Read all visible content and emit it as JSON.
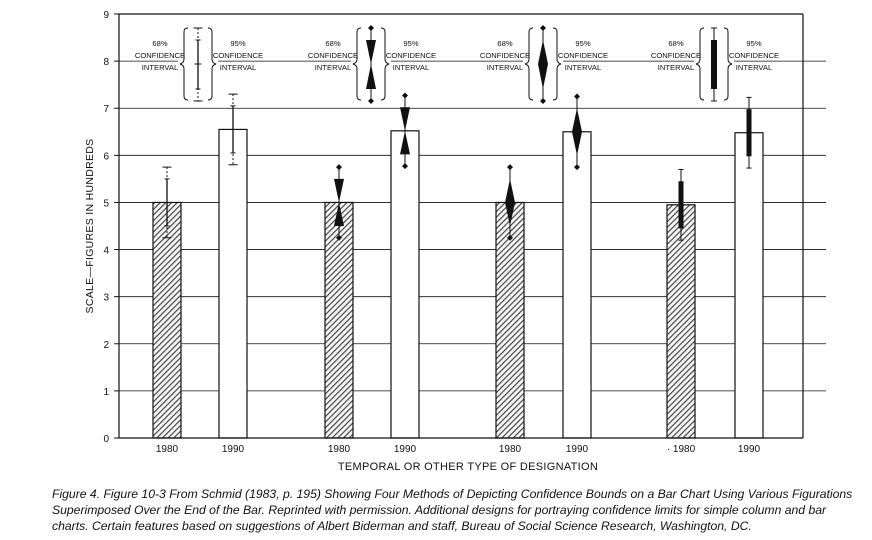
{
  "chart_data": {
    "type": "bar",
    "categories": [
      "1980",
      "1990",
      "1980",
      "1990",
      "· 1980",
      "1990"
    ],
    "groups": [
      {
        "categories": [
          "1980",
          "1990"
        ],
        "values": [
          5.0,
          6.55
        ]
      },
      {
        "categories": [
          "1980",
          "1990"
        ],
        "values": [
          5.0,
          6.52
        ]
      },
      {
        "categories": [
          "1980",
          "1990"
        ],
        "values": [
          5.0,
          6.5
        ]
      },
      {
        "categories": [
          "· 1980",
          "1990"
        ],
        "values": [
          4.95,
          6.48
        ]
      }
    ],
    "ci68": [
      [
        4.5,
        5.5
      ],
      [
        6.05,
        7.05
      ],
      [
        4.5,
        5.5
      ],
      [
        6.02,
        7.02
      ],
      [
        4.5,
        5.5
      ],
      [
        6.0,
        7.0
      ],
      [
        4.45,
        5.45
      ],
      [
        5.98,
        6.98
      ]
    ],
    "ci95": [
      [
        4.25,
        5.75
      ],
      [
        5.8,
        7.3
      ],
      [
        4.25,
        5.75
      ],
      [
        5.77,
        7.27
      ],
      [
        4.25,
        5.75
      ],
      [
        5.75,
        7.25
      ],
      [
        4.2,
        5.7
      ],
      [
        5.73,
        7.23
      ]
    ],
    "ylim": [
      0,
      9
    ],
    "yticks": [
      "0",
      "1",
      "2",
      "3",
      "4",
      "5",
      "6",
      "7",
      "8",
      "9"
    ],
    "ylabel": "SCALE—FIGURES IN HUNDREDS",
    "xlabel": "TEMPORAL OR OTHER TYPE OF DESIGNATION",
    "grid": "horizontal",
    "legend": {
      "label68": [
        "68%",
        "CONFIDENCE",
        "INTERVAL"
      ],
      "label95": [
        "95%",
        "CONFIDENCE",
        "INTERVAL"
      ],
      "styles": [
        "tick marks",
        "hourglass",
        "diamond",
        "solid bar"
      ]
    },
    "colors": {
      "hatched_bar": "#5a5a5a",
      "open_bar": "#ffffff",
      "ink": "#111111"
    }
  },
  "caption": "Figure 4.   Figure 10-3 From Schmid (1983, p. 195) Showing Four Methods of Depicting Confidence Bounds on a Bar Chart Using Various Figurations Superimposed Over the End of the Bar. Reprinted with permission. Additional designs for portraying confidence limits for simple column and bar charts. Certain features based on suggestions of Albert Biderman and staff, Bureau of Social Science Research, Washington, DC."
}
